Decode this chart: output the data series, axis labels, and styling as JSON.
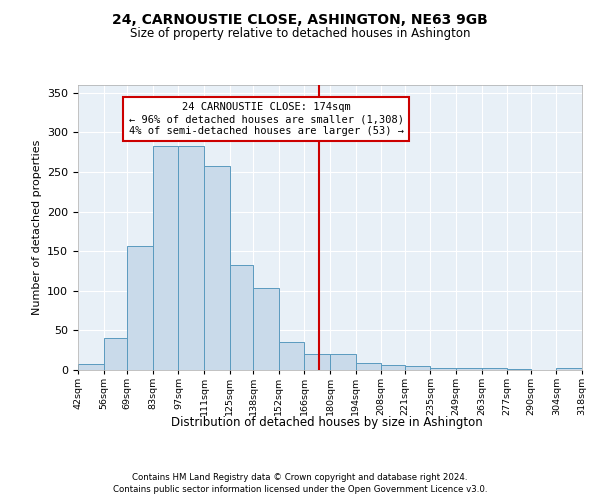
{
  "title": "24, CARNOUSTIE CLOSE, ASHINGTON, NE63 9GB",
  "subtitle": "Size of property relative to detached houses in Ashington",
  "xlabel": "Distribution of detached houses by size in Ashington",
  "ylabel": "Number of detached properties",
  "bin_edges": [
    42,
    56,
    69,
    83,
    97,
    111,
    125,
    138,
    152,
    166,
    180,
    194,
    208,
    221,
    235,
    249,
    263,
    277,
    290,
    304,
    318
  ],
  "bin_labels": [
    "42sqm",
    "56sqm",
    "69sqm",
    "83sqm",
    "97sqm",
    "111sqm",
    "125sqm",
    "138sqm",
    "152sqm",
    "166sqm",
    "180sqm",
    "194sqm",
    "208sqm",
    "221sqm",
    "235sqm",
    "249sqm",
    "263sqm",
    "277sqm",
    "290sqm",
    "304sqm",
    "318sqm"
  ],
  "bar_heights": [
    8,
    40,
    157,
    283,
    283,
    258,
    133,
    104,
    35,
    20,
    20,
    9,
    6,
    5,
    3,
    2,
    2,
    1,
    0,
    3
  ],
  "bar_color": "#c9daea",
  "bar_edge_color": "#5a9abf",
  "property_size": 174,
  "property_line_color": "#cc0000",
  "annotation_line1": "24 CARNOUSTIE CLOSE: 174sqm",
  "annotation_line2": "← 96% of detached houses are smaller (1,308)",
  "annotation_line3": "4% of semi-detached houses are larger (53) →",
  "ylim": [
    0,
    360
  ],
  "yticks": [
    0,
    50,
    100,
    150,
    200,
    250,
    300,
    350
  ],
  "plot_bg_color": "#e8f0f7",
  "grid_color": "white",
  "footer1": "Contains HM Land Registry data © Crown copyright and database right 2024.",
  "footer2": "Contains public sector information licensed under the Open Government Licence v3.0."
}
